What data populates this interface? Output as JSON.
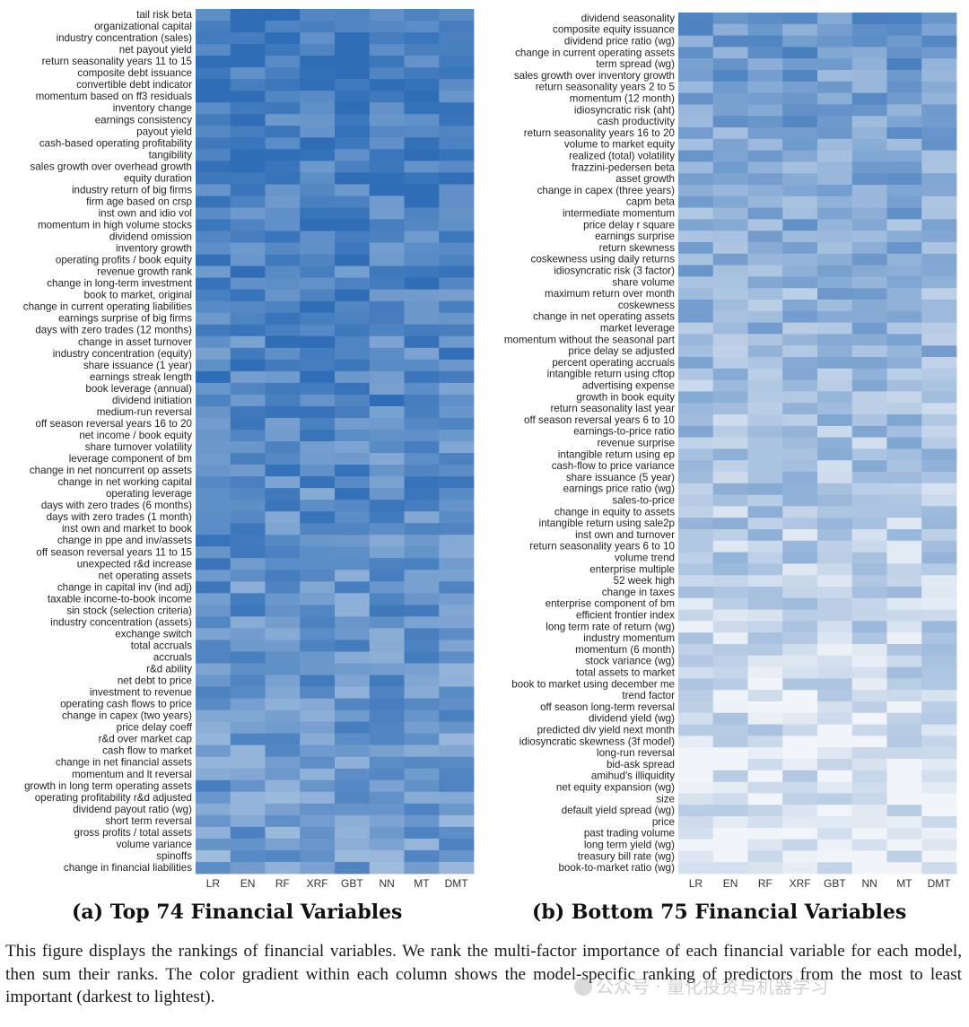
{
  "figure": {
    "panel_a": {
      "caption": "(a) Top 74 Financial Variables",
      "columns": [
        "LR",
        "EN",
        "RF",
        "XRF",
        "GBT",
        "NN",
        "MT",
        "DMT"
      ],
      "rows": [
        "tail risk beta",
        "organizational capital",
        "industry concentration (sales)",
        "net payout yield",
        "return seasonality years 11 to 15",
        "composite debt issuance",
        "convertible debt indicator",
        "momentum based on ff3 residuals",
        "inventory change",
        "earnings consistency",
        "payout yield",
        "cash-based operating profitability",
        "tangibility",
        "sales growth over overhead growth",
        "equity duration",
        "industry return of big firms",
        "firm age based on crsp",
        "inst own and idio vol",
        "momentum in high volume stocks",
        "dividend omission",
        "inventory growth",
        "operating profits / book equity",
        "revenue growth rank",
        "change in long-term investment",
        "book to market, original",
        "change in current operating liabilities",
        "earnings surprise of big firms",
        "days with zero trades (12 months)",
        "change in asset turnover",
        "industry concentration (equity)",
        "share issuance (1 year)",
        "earnings streak length",
        "book leverage (annual)",
        "dividend initiation",
        "medium-run reversal",
        "off season reversal years 16 to 20",
        "net income / book equity",
        "share turnover volatility",
        "leverage component of bm",
        "change in net noncurrent op assets",
        "change in net working capital",
        "operating leverage",
        "days with zero trades (6 months)",
        "days with zero trades (1 month)",
        "inst own and market to book",
        "change in ppe and inv/assets",
        "off season reversal years 11 to 15",
        "unexpected r&d increase",
        "net operating assets",
        "change in capital inv (ind adj)",
        "taxable income-to-book income",
        "sin stock (selection criteria)",
        "industry concentration (assets)",
        "exchange switch",
        "total accruals",
        "accruals",
        "r&d ability",
        "net debt to price",
        "investment to revenue",
        "operating cash flows to price",
        "change in capex (two years)",
        "price delay coeff",
        "r&d over market cap",
        "cash flow to market",
        "change in net financial assets",
        "momentum and lt reversal",
        "growth in long term operating assets",
        "operating profitability r&d adjusted",
        "dividend payout ratio (wg)",
        "short term reversal",
        "gross profits / total assets",
        "volume variance",
        "spinoffs",
        "change in financial liabilities"
      ]
    },
    "panel_b": {
      "caption": "(b) Bottom 75 Financial Variables",
      "columns": [
        "LR",
        "EN",
        "RF",
        "XRF",
        "GBT",
        "NN",
        "MT",
        "DMT"
      ],
      "rows": [
        "dividend seasonality",
        "composite equity issuance",
        "dividend price ratio (wg)",
        "change in current operating assets",
        "term spread (wg)",
        "sales growth over inventory growth",
        "return seasonality years 2 to 5",
        "momentum (12 month)",
        "idiosyncratic risk (aht)",
        "cash productivity",
        "return seasonality years 16 to 20",
        "volume to market equity",
        "realized (total) volatility",
        "frazzini-pedersen beta",
        "asset growth",
        "change in capex (three years)",
        "capm beta",
        "intermediate momentum",
        "price delay r square",
        "earnings surprise",
        "return skewness",
        "coskewness using daily returns",
        "idiosyncratic risk (3 factor)",
        "share volume",
        "maximum return over month",
        "coskewness",
        "change in net operating assets",
        "market leverage",
        "momentum without the seasonal part",
        "price delay se adjusted",
        "percent operating accruals",
        "intangible return using cftop",
        "advertising expense",
        "growth in book equity",
        "return seasonality last year",
        "off season reversal years 6 to 10",
        "earnings-to-price ratio",
        "revenue surprise",
        "intangible return using ep",
        "cash-flow  to price variance",
        "share issuance (5 year)",
        "earnings price ratio (wg)",
        "sales-to-price",
        "change in equity to assets",
        "intangible return using sale2p",
        "inst own and turnover",
        "return seasonality years 6 to 10",
        "volume trend",
        "enterprise multiple",
        "52 week high",
        "change in taxes",
        "enterprise component of bm",
        "efficient frontier index",
        "long term rate of return (wg)",
        "industry momentum",
        "momentum (6 month)",
        "stock variance (wg)",
        "total assets to market",
        "book to market using december me",
        "trend factor",
        "off season long-term reversal",
        "dividend yield (wg)",
        "predicted div yield next month",
        "idiosyncratic skewness (3f model)",
        "long-run reversal",
        "bid-ask spread",
        "amihud's illiquidity",
        "net equity expansion (wg)",
        "size",
        "default yield spread (wg)",
        "price",
        "past trading volume",
        "long term yield (wg)",
        "treasury bill rate (wg)",
        "book-to-market ratio (wg)"
      ]
    },
    "colors": {
      "darkest": "#2f6eb7",
      "lightest": "#f7f8fa"
    },
    "scale_note": "The color gradient within each column shows the model-specific ranking of predictors from the most to least important (darkest to lightest).",
    "note_text": "This figure displays the rankings of financial variables. We rank the multi-factor importance of each financial variable for each model, then sum their ranks. The color gradient within each column shows the model-specific ranking of predictors from the most to least important (darkest to lightest).",
    "watermark_text": "公众号 · 量化投资与机器学习"
  }
}
